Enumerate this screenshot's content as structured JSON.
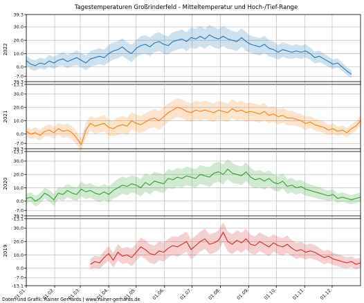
{
  "chart_data": {
    "type": "line",
    "title": "Tagestemperaturen Großrinderfeld - Mitteltemperatur und Hoch-/Tief-Range",
    "credit": "Daten und Grafik: Rainer Gerhards | www.rainer-gerhards.de",
    "x_tick_labels": [
      "01.01.",
      "01.02.",
      "01.03.",
      "01.04.",
      "01.05.",
      "01.06.",
      "01.07.",
      "01.08.",
      "01.09.",
      "01.10.",
      "01.11.",
      "01.12."
    ],
    "x_tick_days": [
      0,
      31,
      59,
      90,
      120,
      151,
      181,
      212,
      243,
      273,
      304,
      334
    ],
    "xlim": [
      0,
      365
    ],
    "y_ticks": [
      -13.1,
      -7.0,
      0.0,
      10.0,
      20.0,
      30.0,
      39.3
    ],
    "y_tick_labels": [
      "-13.1",
      "-7.0",
      "0.0",
      "10.0",
      "20.0",
      "30.0",
      "39.3"
    ],
    "ylim": [
      -13.1,
      39.3
    ],
    "grid": true,
    "panels": [
      {
        "name": "2022",
        "color": "#1f77b4",
        "day_start": 0,
        "day_end": 355,
        "step": 5,
        "mean": [
          4.8,
          2.0,
          1.0,
          3.0,
          2.0,
          4.5,
          3.0,
          5.0,
          6.0,
          4.0,
          5.5,
          7.0,
          5.0,
          3.0,
          6.0,
          7.0,
          8.0,
          7.0,
          10.0,
          12.0,
          13.0,
          15.0,
          12.0,
          10.0,
          14.0,
          16.0,
          17.0,
          15.0,
          18.0,
          19.0,
          17.0,
          16.0,
          19.0,
          20.0,
          21.0,
          19.0,
          22.0,
          21.0,
          23.0,
          21.0,
          24.0,
          22.0,
          21.0,
          23.0,
          21.0,
          20.0,
          19.0,
          22.0,
          19.0,
          17.0,
          16.0,
          15.0,
          17.0,
          14.0,
          13.0,
          11.0,
          13.0,
          12.0,
          11.0,
          12.0,
          11.0,
          12.0,
          10.0,
          7.0,
          8.0,
          6.0,
          4.0,
          2.0,
          3.0,
          0.0,
          -3.0,
          -5.5
        ],
        "spread": [
          3.5,
          4.0,
          4.0,
          4.0,
          4.0,
          4.5,
          4.5,
          4.5,
          5.0,
          5.0,
          5.0,
          5.5,
          5.5,
          5.5,
          6.0,
          6.0,
          6.0,
          6.0,
          6.5,
          6.5,
          6.5,
          6.5,
          6.5,
          6.5,
          6.5,
          7.0,
          7.0,
          7.0,
          7.0,
          7.0,
          7.0,
          7.0,
          7.0,
          7.0,
          7.0,
          7.0,
          7.5,
          7.5,
          7.5,
          7.5,
          7.5,
          7.5,
          7.5,
          7.5,
          7.5,
          7.0,
          7.0,
          7.0,
          7.0,
          6.5,
          6.5,
          6.5,
          6.5,
          6.0,
          6.0,
          5.5,
          5.5,
          5.5,
          5.0,
          5.0,
          5.0,
          5.0,
          4.5,
          4.5,
          4.5,
          4.0,
          4.0,
          3.5,
          3.5,
          3.0,
          3.0,
          3.0
        ]
      },
      {
        "name": "2021",
        "color": "#ff7f0e",
        "day_start": 0,
        "day_end": 365,
        "step": 5,
        "mean": [
          2.0,
          0.0,
          1.0,
          -1.0,
          2.0,
          3.0,
          1.0,
          4.0,
          2.0,
          3.0,
          1.0,
          -3.0,
          -8.0,
          3.0,
          8.0,
          6.0,
          7.0,
          8.0,
          5.0,
          4.0,
          6.0,
          7.0,
          6.0,
          10.0,
          8.0,
          7.0,
          9.0,
          11.0,
          12.0,
          10.0,
          13.0,
          16.0,
          18.0,
          20.0,
          19.0,
          17.0,
          16.0,
          18.0,
          17.0,
          18.0,
          17.0,
          16.0,
          18.0,
          17.0,
          16.0,
          19.0,
          17.0,
          18.0,
          16.0,
          17.0,
          16.0,
          15.0,
          17.0,
          14.0,
          15.0,
          13.0,
          14.0,
          12.0,
          12.0,
          11.0,
          10.0,
          8.0,
          9.0,
          7.0,
          6.0,
          5.0,
          3.0,
          4.0,
          2.0,
          3.0,
          1.0,
          4.0,
          6.0,
          10.0
        ],
        "spread": [
          3.5,
          3.5,
          4.0,
          4.0,
          4.0,
          4.5,
          4.5,
          4.5,
          5.0,
          5.0,
          5.0,
          5.0,
          5.0,
          5.5,
          5.5,
          6.0,
          6.0,
          6.0,
          6.0,
          6.0,
          6.5,
          6.5,
          6.5,
          6.5,
          6.5,
          6.5,
          6.5,
          6.5,
          7.0,
          7.0,
          7.0,
          7.0,
          7.0,
          7.0,
          7.0,
          7.0,
          7.0,
          7.0,
          7.0,
          7.0,
          7.0,
          7.0,
          7.0,
          7.0,
          7.0,
          7.0,
          7.0,
          7.0,
          7.0,
          6.5,
          6.5,
          6.5,
          6.5,
          6.0,
          6.0,
          6.0,
          5.5,
          5.5,
          5.5,
          5.0,
          5.0,
          5.0,
          4.5,
          4.5,
          4.5,
          4.0,
          4.0,
          4.0,
          3.5,
          3.5,
          3.5,
          3.5,
          3.5,
          3.5
        ]
      },
      {
        "name": "2020",
        "color": "#2ca02c",
        "day_start": 0,
        "day_end": 365,
        "step": 5,
        "mean": [
          2.0,
          3.0,
          0.0,
          2.0,
          6.0,
          4.0,
          1.0,
          6.0,
          5.0,
          8.0,
          6.0,
          5.0,
          9.0,
          7.0,
          8.0,
          6.0,
          5.0,
          7.0,
          5.0,
          8.0,
          10.0,
          12.0,
          11.0,
          13.0,
          12.0,
          10.0,
          14.0,
          12.0,
          15.0,
          14.0,
          13.0,
          17.0,
          16.0,
          18.0,
          17.0,
          19.0,
          18.0,
          17.0,
          20.0,
          19.0,
          18.0,
          21.0,
          22.0,
          20.0,
          24.0,
          21.0,
          20.0,
          19.0,
          22.0,
          18.0,
          16.0,
          17.0,
          15.0,
          17.0,
          14.0,
          13.0,
          15.0,
          11.0,
          12.0,
          10.0,
          11.0,
          9.0,
          8.0,
          7.0,
          6.0,
          5.0,
          4.0,
          5.0,
          2.0,
          3.0,
          2.0,
          1.0,
          2.0,
          3.0
        ],
        "spread": [
          3.5,
          3.5,
          4.0,
          4.0,
          4.0,
          4.5,
          4.5,
          4.5,
          5.0,
          5.0,
          5.0,
          5.0,
          5.5,
          5.5,
          5.5,
          5.5,
          6.0,
          6.0,
          6.0,
          6.0,
          6.5,
          6.5,
          6.5,
          6.5,
          6.5,
          6.5,
          7.0,
          7.0,
          7.0,
          7.0,
          7.0,
          7.0,
          7.0,
          7.0,
          7.0,
          7.0,
          7.0,
          7.0,
          7.0,
          7.0,
          7.5,
          7.5,
          7.5,
          7.5,
          7.5,
          7.5,
          7.0,
          7.0,
          7.0,
          7.0,
          6.5,
          6.5,
          6.5,
          6.0,
          6.0,
          6.0,
          5.5,
          5.5,
          5.5,
          5.0,
          5.0,
          5.0,
          4.5,
          4.5,
          4.5,
          4.0,
          4.0,
          4.0,
          3.5,
          3.5,
          3.5,
          3.5,
          3.5,
          3.5
        ]
      },
      {
        "name": "2019",
        "color": "#d62728",
        "day_start": 70,
        "day_end": 365,
        "step": 5,
        "mean": [
          3.0,
          5.0,
          4.0,
          8.0,
          11.0,
          6.0,
          12.0,
          9.0,
          10.0,
          8.0,
          12.0,
          16.0,
          14.0,
          11.0,
          10.0,
          13.0,
          12.0,
          15.0,
          17.0,
          16.0,
          18.0,
          20.0,
          14.0,
          17.0,
          20.0,
          22.0,
          18.0,
          19.0,
          21.0,
          27.0,
          20.0,
          18.0,
          21.0,
          19.0,
          22.0,
          18.0,
          17.0,
          20.0,
          18.0,
          16.0,
          19.0,
          17.0,
          16.0,
          18.0,
          15.0,
          13.0,
          14.0,
          12.0,
          13.0,
          12.0,
          10.0,
          8.0,
          9.0,
          7.0,
          6.0,
          5.0,
          4.0,
          5.0,
          3.0,
          4.0
        ],
        "spread": [
          4.0,
          4.5,
          4.5,
          5.0,
          5.5,
          5.5,
          6.0,
          6.0,
          6.0,
          6.5,
          6.5,
          7.0,
          7.0,
          7.0,
          7.0,
          7.0,
          7.0,
          7.0,
          7.0,
          7.5,
          7.5,
          7.5,
          7.5,
          7.5,
          7.5,
          7.5,
          7.5,
          7.5,
          7.5,
          7.5,
          7.5,
          7.5,
          7.5,
          7.5,
          7.5,
          7.0,
          7.0,
          7.0,
          7.0,
          7.0,
          6.5,
          6.5,
          6.5,
          6.5,
          6.0,
          6.0,
          6.0,
          5.5,
          5.5,
          5.5,
          5.0,
          5.0,
          5.0,
          4.5,
          4.5,
          4.5,
          4.0,
          4.0,
          4.0,
          4.0
        ]
      }
    ]
  }
}
